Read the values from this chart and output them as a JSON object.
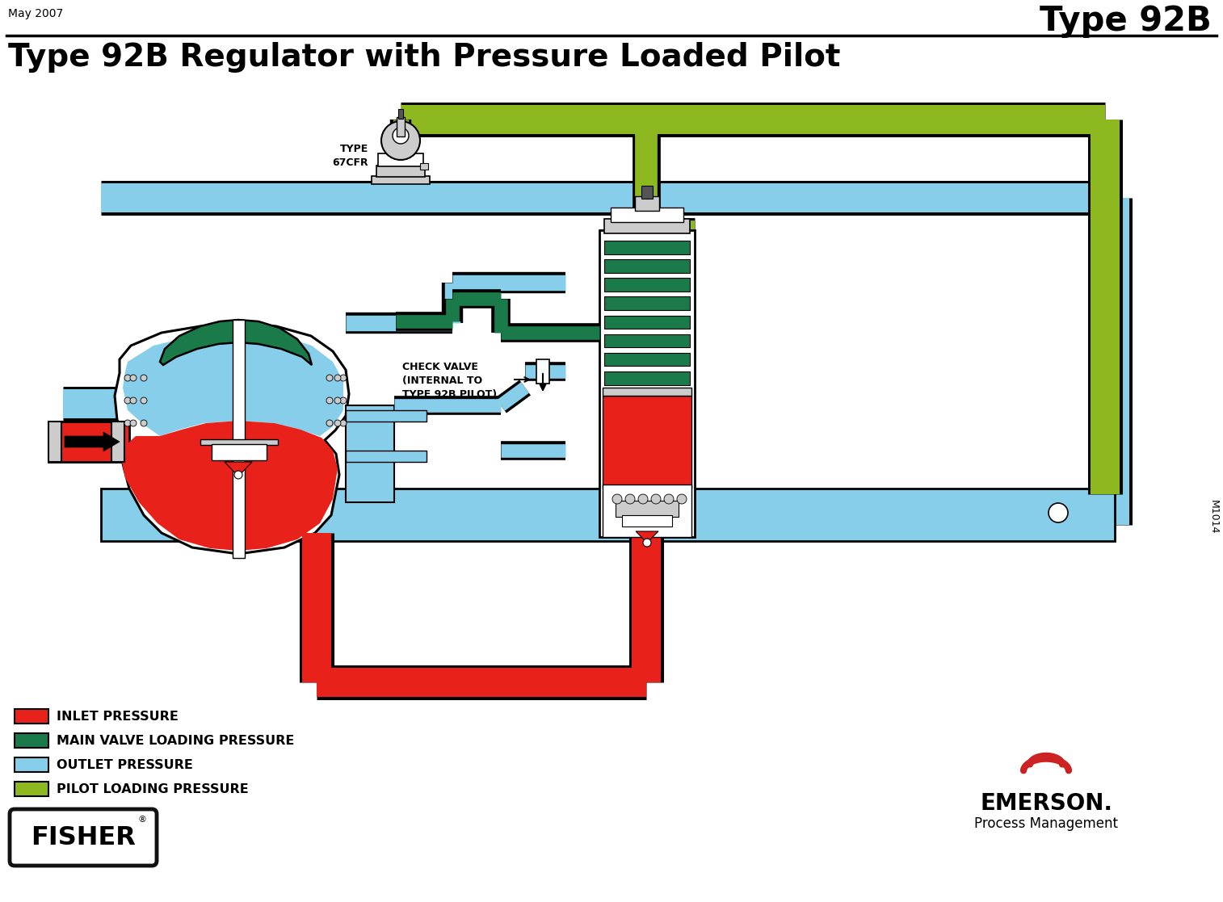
{
  "title": "Type 92B",
  "subtitle": "Type 92B Regulator with Pressure Loaded Pilot",
  "date": "May 2007",
  "colors": {
    "inlet_pressure": "#E8221A",
    "main_valve_loading": "#1A7A4A",
    "outlet_pressure": "#87CEEB",
    "pilot_loading": "#8DB820",
    "background": "#FFFFFF",
    "outline": "#000000",
    "light_gray": "#CCCCCC",
    "dark_gray": "#555555"
  },
  "legend_items": [
    {
      "color": "#E8221A",
      "label": "INLET PRESSURE"
    },
    {
      "color": "#1A7A4A",
      "label": "MAIN VALVE LOADING PRESSURE"
    },
    {
      "color": "#87CEEB",
      "label": "OUTLET PRESSURE"
    },
    {
      "color": "#8DB820",
      "label": "PILOT LOADING PRESSURE"
    }
  ]
}
